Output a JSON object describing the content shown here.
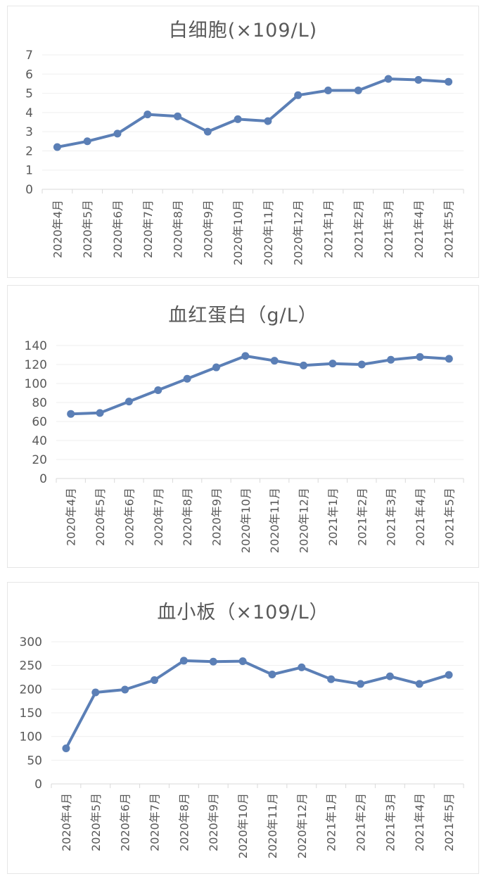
{
  "chart_data": [
    {
      "type": "line",
      "title": "白细胞(×109/L)",
      "categories": [
        "2020年4月",
        "2020年5月",
        "2020年6月",
        "2020年7月",
        "2020年8月",
        "2020年9月",
        "2020年10月",
        "2020年11月",
        "2020年12月",
        "2021年1月",
        "2021年2月",
        "2021年3月",
        "2021年4月",
        "2021年5月"
      ],
      "values": [
        2.2,
        2.5,
        2.9,
        3.9,
        3.8,
        3.0,
        3.65,
        3.55,
        4.9,
        5.15,
        5.15,
        5.75,
        5.7,
        5.6
      ],
      "ylim": [
        0,
        7
      ],
      "yticks": [
        "0",
        "1",
        "2",
        "3",
        "4",
        "5",
        "6",
        "7"
      ],
      "grid": true,
      "line_color": "#5b7fb6"
    },
    {
      "type": "line",
      "title": "血红蛋白（g/L）",
      "categories": [
        "2020年4月",
        "2020年5月",
        "2020年6月",
        "2020年7月",
        "2020年8月",
        "2020年9月",
        "2020年10月",
        "2020年11月",
        "2020年12月",
        "2021年1月",
        "2021年2月",
        "2021年3月",
        "2021年4月",
        "2021年5月"
      ],
      "values": [
        68,
        69,
        81,
        93,
        105,
        117,
        129,
        124,
        119,
        121,
        120,
        125,
        128,
        126
      ],
      "ylim": [
        0,
        140
      ],
      "yticks": [
        "0",
        "20",
        "40",
        "60",
        "80",
        "100",
        "120",
        "140"
      ],
      "grid": true,
      "line_color": "#5b7fb6"
    },
    {
      "type": "line",
      "title": "血小板（×109/L）",
      "categories": [
        "2020年4月",
        "2020年5月",
        "2020年6月",
        "2020年7月",
        "2020年8月",
        "2020年9月",
        "2020年10月",
        "2020年11月",
        "2020年12月",
        "2021年1月",
        "2021年2月",
        "2021年3月",
        "2021年4月",
        "2021年5月"
      ],
      "values": [
        75,
        193,
        199,
        219,
        260,
        258,
        259,
        231,
        246,
        221,
        211,
        227,
        211,
        230
      ],
      "ylim": [
        0,
        300
      ],
      "yticks": [
        "0",
        "50",
        "100",
        "150",
        "200",
        "250",
        "300"
      ],
      "grid": true,
      "line_color": "#5b7fb6"
    }
  ]
}
